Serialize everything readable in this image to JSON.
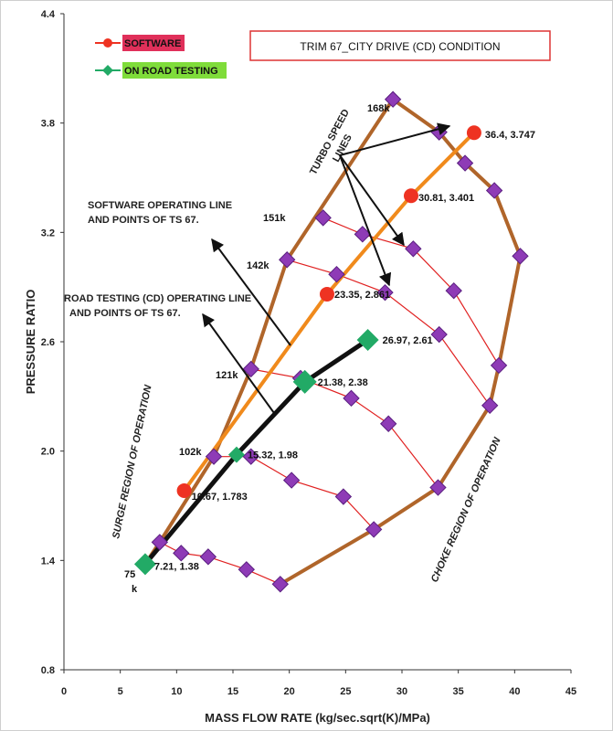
{
  "chart_data": {
    "type": "line",
    "title": "TRIM 67_CITY DRIVE (CD) CONDITION",
    "xlabel": "MASS FLOW RATE (kg/sec.sqrt(K)/MPa)",
    "ylabel": "PRESSURE RATIO",
    "xlim": [
      0,
      45
    ],
    "ylim": [
      0.8,
      4.4
    ],
    "xticks": [
      "0",
      "5",
      "10",
      "15",
      "20",
      "25",
      "30",
      "35",
      "40",
      "45"
    ],
    "yticks": [
      "0.8",
      "1.4",
      "2.0",
      "2.6",
      "3.2",
      "3.8",
      "4.4"
    ],
    "legend": {
      "position": "top-left",
      "items": [
        "SOFTWARE",
        "ON ROAD TESTING"
      ]
    },
    "colors": {
      "software": "#ee3322",
      "road": "#22aa66",
      "software_line": "#f08a1c",
      "road_line": "#111111",
      "map_boundary": "#b0652a",
      "speed_line": "#e02020",
      "map_marker": "#8e3bb6",
      "legend_software_bg": "#e0305a",
      "legend_road_bg": "#7fdc3a",
      "title_border": "#d33333"
    },
    "software_series": {
      "name": "SOFTWARE",
      "points": [
        [
          10.67,
          1.783
        ],
        [
          23.35,
          2.861
        ],
        [
          30.81,
          3.401
        ],
        [
          36.4,
          3.747
        ]
      ],
      "labels": [
        "10.67, 1.783",
        "23.35, 2.861",
        "30.81, 3.401",
        "36.4, 3.747"
      ]
    },
    "road_series": {
      "name": "ON ROAD TESTING",
      "points": [
        [
          7.21,
          1.38
        ],
        [
          15.32,
          1.98
        ],
        [
          21.38,
          2.38
        ],
        [
          26.97,
          2.61
        ]
      ],
      "labels": [
        "7.21, 1.38",
        "15.32, 1.98",
        "21.38, 2.38",
        "26.97, 2.61"
      ]
    },
    "surge_line": [
      [
        7.21,
        1.38
      ],
      [
        8.5,
        1.5
      ],
      [
        13.3,
        1.97
      ],
      [
        16.6,
        2.45
      ],
      [
        19.8,
        3.05
      ],
      [
        29.2,
        3.93
      ]
    ],
    "choke_line": [
      [
        19.2,
        1.27
      ],
      [
        27.5,
        1.57
      ],
      [
        33.2,
        1.8
      ],
      [
        37.8,
        2.25
      ],
      [
        38.6,
        2.47
      ],
      [
        40.5,
        3.07
      ],
      [
        38.2,
        3.43
      ],
      [
        35.6,
        3.58
      ],
      [
        33.3,
        3.75
      ],
      [
        29.2,
        3.93
      ]
    ],
    "speed_lines": [
      {
        "label": "75 k",
        "points": [
          [
            8.5,
            1.5
          ],
          [
            10.4,
            1.44
          ],
          [
            12.8,
            1.42
          ],
          [
            16.2,
            1.35
          ],
          [
            19.2,
            1.27
          ]
        ]
      },
      {
        "label": "102k",
        "points": [
          [
            13.3,
            1.97
          ],
          [
            16.6,
            1.97
          ],
          [
            20.2,
            1.84
          ],
          [
            24.8,
            1.75
          ],
          [
            27.5,
            1.57
          ]
        ]
      },
      {
        "label": "121k",
        "points": [
          [
            16.6,
            2.45
          ],
          [
            21.0,
            2.4
          ],
          [
            25.5,
            2.29
          ],
          [
            28.8,
            2.15
          ],
          [
            33.2,
            1.8
          ]
        ]
      },
      {
        "label": "142k",
        "points": [
          [
            19.8,
            3.05
          ],
          [
            24.2,
            2.97
          ],
          [
            28.5,
            2.87
          ],
          [
            33.3,
            2.64
          ],
          [
            37.8,
            2.25
          ]
        ]
      },
      {
        "label": "151k",
        "points": [
          [
            23.0,
            3.28
          ],
          [
            26.5,
            3.19
          ],
          [
            31.0,
            3.11
          ],
          [
            34.6,
            2.88
          ],
          [
            38.6,
            2.47
          ]
        ]
      },
      {
        "label": "168k",
        "points": [
          [
            29.2,
            3.93
          ]
        ]
      }
    ],
    "annotations": {
      "turbo": [
        "TURBO SPEED",
        "LINES"
      ],
      "software_op": [
        "SOFTWARE OPERATING LINE",
        "AND POINTS OF TS 67."
      ],
      "road_op": [
        "ROAD TESTING (CD) OPERATING LINE",
        "AND POINTS OF TS 67."
      ],
      "surge": "SURGE REGION OF OPERATION",
      "choke": "CHOKE REGION OF OPERATION"
    }
  }
}
